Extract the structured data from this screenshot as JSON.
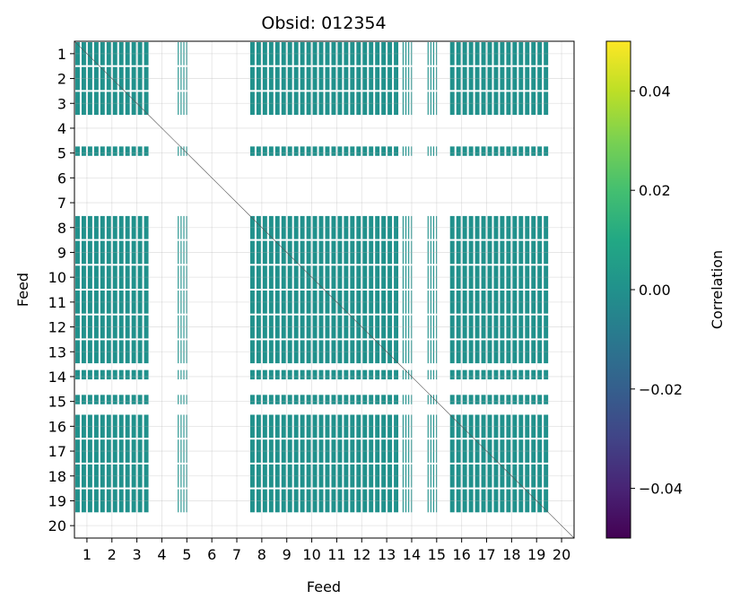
{
  "chart_data": {
    "type": "heatmap",
    "title": "Obsid: 012354",
    "xlabel": "Feed",
    "ylabel": "Feed",
    "x_ticks": [
      "1",
      "2",
      "3",
      "4",
      "5",
      "6",
      "7",
      "8",
      "9",
      "10",
      "11",
      "12",
      "13",
      "14",
      "15",
      "16",
      "17",
      "18",
      "19",
      "20"
    ],
    "y_ticks": [
      "1",
      "2",
      "3",
      "4",
      "5",
      "6",
      "7",
      "8",
      "9",
      "10",
      "11",
      "12",
      "13",
      "14",
      "15",
      "16",
      "17",
      "18",
      "19",
      "20"
    ],
    "grid": true,
    "colorbar": {
      "label": "Correlation",
      "vmin": -0.05,
      "vmax": 0.05,
      "ticks": [
        -0.04,
        -0.02,
        0.0,
        0.02,
        0.04
      ],
      "tick_labels": [
        "−0.04",
        "−0.02",
        "0.00",
        "0.02",
        "0.04"
      ],
      "colormap": "viridis"
    },
    "feeds": {
      "active": [
        1,
        2,
        3,
        5,
        8,
        9,
        10,
        11,
        12,
        13,
        14,
        15,
        16,
        17,
        18,
        19
      ],
      "inactive": [
        4,
        6,
        7,
        20
      ],
      "partial": [
        5,
        14,
        15
      ]
    },
    "cell_value": 0.0,
    "cell_color": "#21918c"
  }
}
